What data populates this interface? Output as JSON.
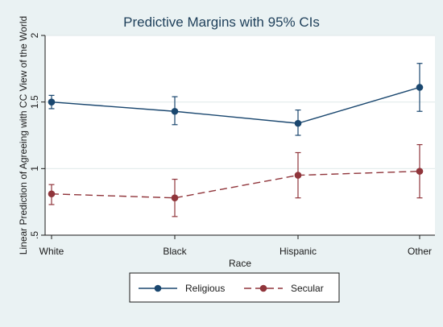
{
  "chart_data": {
    "type": "line",
    "title": "Predictive Margins with 95% CIs",
    "xlabel": "Race",
    "ylabel": "Linear Prediction of Agreeing with CC View of the World",
    "categories": [
      "White",
      "Black",
      "Hispanic",
      "Other"
    ],
    "ylim": [
      0.5,
      2
    ],
    "yticks": [
      ".5",
      "1",
      "1.5",
      "2"
    ],
    "grid": true,
    "legend_position": "bottom",
    "series": [
      {
        "name": "Religious",
        "color": "#1a476f",
        "line_style": "solid",
        "values": [
          1.5,
          1.43,
          1.34,
          1.61
        ],
        "ci_low": [
          1.45,
          1.33,
          1.25,
          1.43
        ],
        "ci_high": [
          1.55,
          1.54,
          1.44,
          1.79
        ]
      },
      {
        "name": "Secular",
        "color": "#90353b",
        "line_style": "dashed",
        "values": [
          0.81,
          0.78,
          0.95,
          0.98
        ],
        "ci_low": [
          0.73,
          0.64,
          0.78,
          0.78
        ],
        "ci_high": [
          0.88,
          0.92,
          1.12,
          1.18
        ]
      }
    ]
  }
}
